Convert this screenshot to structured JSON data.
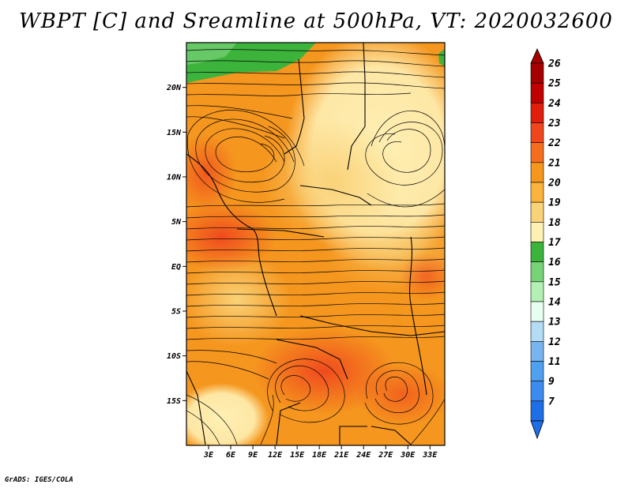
{
  "title": "WBPT [C] and Sreamline at 500hPa, VT: 2020032600",
  "credit": "GrADS: IGES/COLA",
  "map": {
    "region": "Africa subset",
    "lon_range": [
      0,
      35
    ],
    "lat_range": [
      -20,
      25
    ],
    "lat_ticks": [
      {
        "label": "20N",
        "value": 20
      },
      {
        "label": "15N",
        "value": 15
      },
      {
        "label": "10N",
        "value": 10
      },
      {
        "label": "5N",
        "value": 5
      },
      {
        "label": "EQ",
        "value": 0
      },
      {
        "label": "5S",
        "value": -5
      },
      {
        "label": "10S",
        "value": -10
      },
      {
        "label": "15S",
        "value": -15
      }
    ],
    "lon_ticks": [
      {
        "label": "3E",
        "value": 3
      },
      {
        "label": "6E",
        "value": 6
      },
      {
        "label": "9E",
        "value": 9
      },
      {
        "label": "12E",
        "value": 12
      },
      {
        "label": "15E",
        "value": 15
      },
      {
        "label": "18E",
        "value": 18
      },
      {
        "label": "21E",
        "value": 21
      },
      {
        "label": "24E",
        "value": 24
      },
      {
        "label": "27E",
        "value": 27
      },
      {
        "label": "30E",
        "value": 30
      },
      {
        "label": "33E",
        "value": 33
      }
    ]
  },
  "colorbar": {
    "levels": [
      {
        "label": "26",
        "color": "#a50000"
      },
      {
        "label": "25",
        "color": "#c00000"
      },
      {
        "label": "24",
        "color": "#e01e0a"
      },
      {
        "label": "23",
        "color": "#f0461e"
      },
      {
        "label": "22",
        "color": "#f56e1e"
      },
      {
        "label": "21",
        "color": "#f5961e"
      },
      {
        "label": "20",
        "color": "#fab43c"
      },
      {
        "label": "19",
        "color": "#fad278"
      },
      {
        "label": "18",
        "color": "#fff0b4"
      },
      {
        "label": "17",
        "color": "#3cb43c"
      },
      {
        "label": "16",
        "color": "#78d278"
      },
      {
        "label": "15",
        "color": "#b4f0b4"
      },
      {
        "label": "14",
        "color": "#e6fff0"
      },
      {
        "label": "13",
        "color": "#b4dcf5"
      },
      {
        "label": "12",
        "color": "#78b4f0"
      },
      {
        "label": "11",
        "color": "#50a0f0"
      },
      {
        "label": "9",
        "color": "#3c8cf0"
      },
      {
        "label": "7",
        "color": "#1e6ee6"
      }
    ],
    "extend_low_color": "#1e6ee6",
    "extend_high_color": "#a50000"
  }
}
